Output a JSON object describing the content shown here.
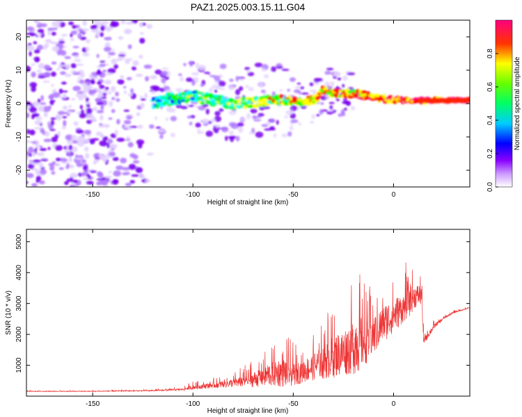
{
  "figure": {
    "title": "PAZ1.2025.003.15.11.G04"
  },
  "chart_data": [
    {
      "type": "heatmap",
      "xlabel": "Height of straight line (km)",
      "ylabel": "Frequency (Hz)",
      "xlim": [
        -183,
        38
      ],
      "ylim": [
        -25,
        25
      ],
      "xticks": [
        "-150",
        "-100",
        "-50",
        "0"
      ],
      "xtick_values": [
        -150,
        -100,
        -50,
        0
      ],
      "yticks": [
        "-20",
        "-10",
        "0",
        "10",
        "20"
      ],
      "ytick_values": [
        -20,
        -10,
        0,
        10,
        20
      ],
      "colorbar": {
        "label": "Normalized spectral amplitude",
        "range": [
          0,
          1
        ],
        "ticks": [
          "0.0",
          "0.2",
          "0.4",
          "0.6",
          "0.8"
        ],
        "tick_values": [
          0,
          0.2,
          0.4,
          0.6,
          0.8
        ],
        "colormap": [
          "#ffffff",
          "#8800ff",
          "#0000ff",
          "#00ffff",
          "#00ff00",
          "#ffff00",
          "#ff0000",
          "#ff0080"
        ]
      },
      "ridge": {
        "x": [
          -120,
          -110,
          -100,
          -90,
          -80,
          -70,
          -60,
          -50,
          -40,
          -35,
          -30,
          -20,
          -10,
          0,
          10,
          20,
          30,
          38
        ],
        "y": [
          0,
          1.5,
          2,
          1,
          0,
          0.5,
          1,
          0.8,
          1,
          4,
          3,
          3,
          2,
          1,
          1,
          1,
          1,
          1
        ]
      }
    },
    {
      "type": "line",
      "xlabel": "Height of straight line (km)",
      "ylabel": "SNR (10 * v/v)",
      "xlim": [
        -183,
        38
      ],
      "ylim": [
        0,
        5400
      ],
      "xticks": [
        "-150",
        "-100",
        "-50",
        "0"
      ],
      "xtick_values": [
        -150,
        -100,
        -50,
        0
      ],
      "yticks": [
        "1000",
        "2000",
        "3000",
        "4000",
        "5000"
      ],
      "ytick_values": [
        1000,
        2000,
        3000,
        4000,
        5000
      ],
      "color": "#ee3333",
      "envelope": {
        "x": [
          -183,
          -150,
          -120,
          -105,
          -100,
          -90,
          -80,
          -70,
          -60,
          -55,
          -50,
          -45,
          -40,
          -30,
          -25,
          -20,
          -18,
          -15,
          -10,
          -5,
          0,
          5,
          8,
          10,
          14,
          15,
          20,
          25,
          30,
          38
        ],
        "base": [
          150,
          150,
          170,
          200,
          250,
          300,
          350,
          400,
          500,
          500,
          500,
          600,
          700,
          900,
          1000,
          1100,
          1200,
          1300,
          1600,
          2000,
          2300,
          2600,
          2800,
          3000,
          3100,
          1700,
          2200,
          2500,
          2700,
          2850
        ],
        "amp": [
          40,
          40,
          60,
          120,
          280,
          350,
          500,
          900,
          1600,
          1800,
          1400,
          1400,
          1600,
          2600,
          2700,
          3400,
          4000,
          2900,
          2400,
          2300,
          2100,
          1700,
          2200,
          1400,
          1300,
          500,
          300,
          150,
          100,
          80
        ]
      }
    }
  ]
}
